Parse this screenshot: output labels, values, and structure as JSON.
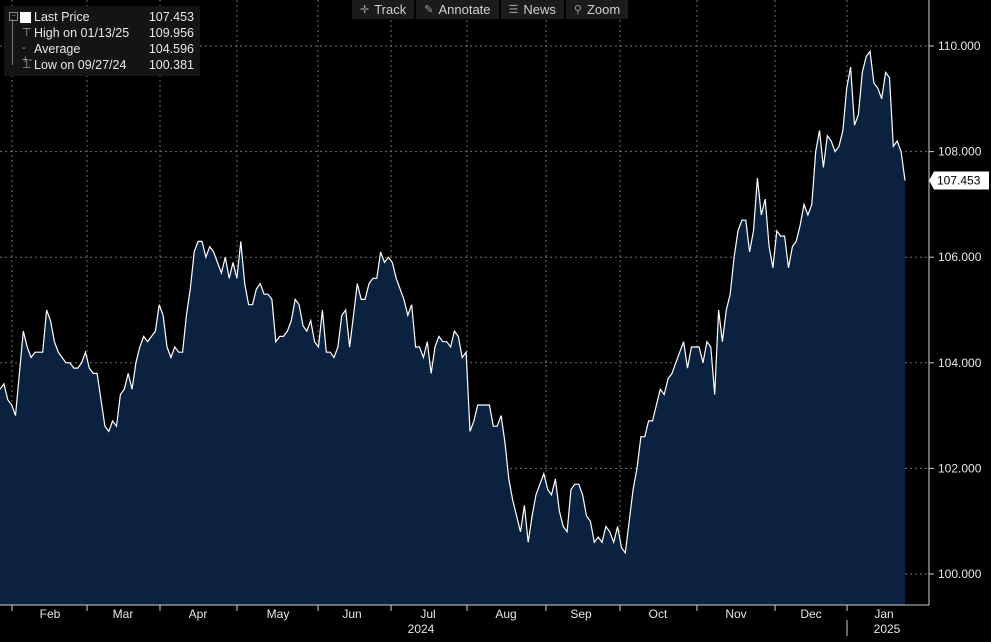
{
  "toolbar": {
    "track": "Track",
    "annotate": "Annotate",
    "news": "News",
    "zoom": "Zoom"
  },
  "legend": {
    "last_label": "Last Price",
    "last_value": "107.453",
    "high_label": "High on 01/13/25",
    "high_value": "109.956",
    "avg_label": "Average",
    "avg_value": "104.596",
    "low_label": "Low on 09/27/24",
    "low_value": "100.381"
  },
  "colors": {
    "line": "#ffffff",
    "fill": "#0b2140",
    "grid": "#707070",
    "background": "#000000"
  },
  "chart_data": {
    "type": "area",
    "series": [
      {
        "name": "Last Price",
        "values": [
          103.5,
          103.6,
          103.3,
          103.2,
          103.0,
          103.8,
          104.6,
          104.3,
          104.1,
          104.2,
          104.2,
          104.2,
          105.0,
          104.8,
          104.4,
          104.2,
          104.1,
          104.0,
          104.0,
          103.9,
          103.9,
          104.0,
          104.2,
          103.9,
          103.8,
          103.8,
          103.3,
          102.8,
          102.7,
          102.9,
          102.8,
          103.4,
          103.5,
          103.8,
          103.5,
          104.0,
          104.3,
          104.5,
          104.4,
          104.5,
          104.6,
          105.1,
          104.9,
          104.3,
          104.1,
          104.3,
          104.2,
          104.2,
          104.9,
          105.4,
          106.1,
          106.3,
          106.3,
          106.0,
          106.2,
          106.1,
          105.9,
          105.7,
          106.0,
          105.6,
          105.9,
          105.6,
          106.3,
          105.5,
          105.1,
          105.1,
          105.4,
          105.5,
          105.3,
          105.3,
          105.2,
          104.4,
          104.5,
          104.5,
          104.6,
          104.8,
          105.2,
          105.1,
          104.7,
          104.6,
          104.8,
          104.4,
          104.3,
          105.0,
          104.2,
          104.2,
          104.1,
          104.3,
          104.9,
          105.0,
          104.3,
          104.9,
          105.5,
          105.2,
          105.2,
          105.5,
          105.6,
          105.6,
          106.1,
          105.9,
          106.0,
          105.9,
          105.6,
          105.4,
          105.2,
          104.9,
          105.1,
          104.3,
          104.3,
          104.1,
          104.4,
          103.8,
          104.3,
          104.5,
          104.4,
          104.4,
          104.3,
          104.6,
          104.5,
          104.1,
          104.2,
          102.7,
          102.9,
          103.2,
          103.2,
          103.2,
          103.2,
          102.8,
          102.8,
          103.0,
          102.5,
          101.8,
          101.4,
          101.1,
          100.8,
          101.3,
          100.6,
          101.1,
          101.5,
          101.7,
          101.9,
          101.6,
          101.5,
          101.8,
          101.2,
          100.9,
          100.8,
          101.6,
          101.7,
          101.7,
          101.5,
          101.1,
          101.0,
          100.6,
          100.7,
          100.6,
          100.9,
          100.8,
          100.6,
          100.9,
          100.5,
          100.4,
          101.0,
          101.6,
          102.0,
          102.6,
          102.6,
          102.9,
          102.9,
          103.2,
          103.5,
          103.4,
          103.7,
          103.8,
          104.0,
          104.2,
          104.4,
          103.9,
          104.3,
          104.3,
          104.3,
          104.0,
          104.4,
          104.3,
          103.4,
          105.0,
          104.4,
          105.0,
          105.3,
          106.0,
          106.5,
          106.7,
          106.7,
          106.1,
          106.5,
          107.5,
          106.8,
          107.1,
          106.2,
          105.8,
          106.5,
          106.4,
          106.4,
          105.8,
          106.2,
          106.3,
          106.6,
          107.0,
          106.8,
          107.0,
          108.0,
          108.4,
          107.7,
          108.3,
          108.2,
          108.0,
          108.1,
          108.4,
          109.2,
          109.6,
          108.5,
          108.7,
          109.5,
          109.8,
          109.9,
          109.3,
          109.2,
          109.0,
          109.5,
          109.4,
          108.1,
          108.2,
          108.0,
          107.453
        ]
      }
    ],
    "x_start": "2024-01-02",
    "x_end": "2025-01-17",
    "x_ticks": [
      "Feb",
      "Mar",
      "Apr",
      "May",
      "Jun",
      "Jul",
      "Aug",
      "Sep",
      "Oct",
      "Nov",
      "Dec",
      "Jan"
    ],
    "year_labels": [
      "2024",
      "2025"
    ],
    "y_ticks": [
      "100.000",
      "102.000",
      "104.000",
      "106.000",
      "108.000",
      "110.000"
    ],
    "ylim": [
      99.5,
      110.6
    ],
    "last_value_label": "107.453",
    "grid": true,
    "legend_position": "top-left"
  }
}
